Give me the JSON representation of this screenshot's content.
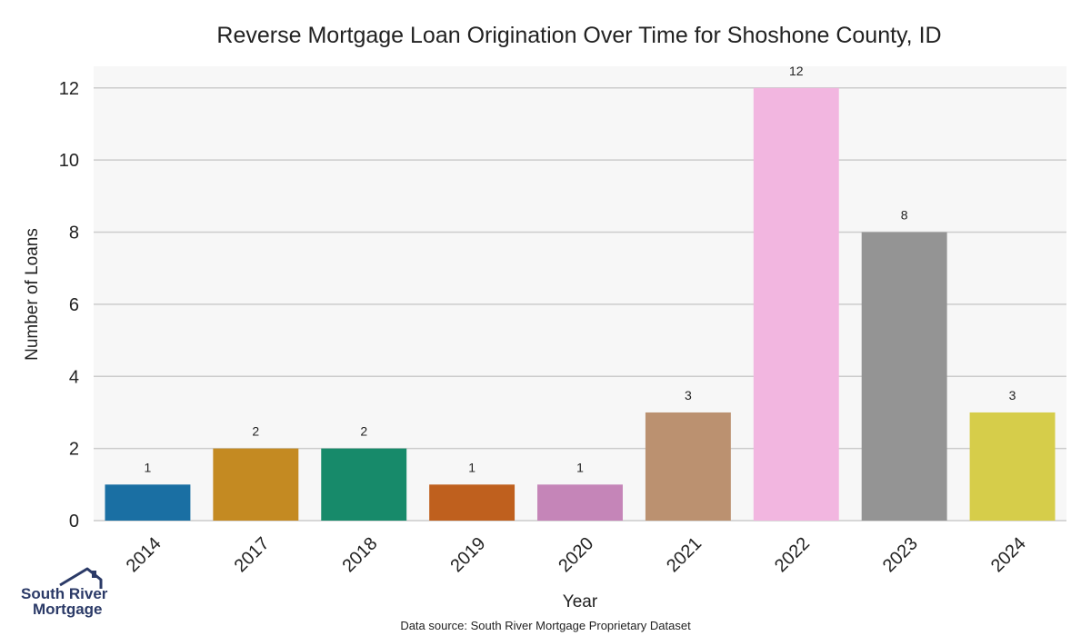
{
  "chart_data": {
    "type": "bar",
    "title": "Reverse Mortgage Loan Origination Over Time for Shoshone County, ID",
    "xlabel": "Year",
    "ylabel": "Number of Loans",
    "categories": [
      "2014",
      "2017",
      "2018",
      "2019",
      "2020",
      "2021",
      "2022",
      "2023",
      "2024"
    ],
    "values": [
      1,
      2,
      2,
      1,
      1,
      3,
      12,
      8,
      3
    ],
    "colors": [
      "#1a6fa3",
      "#c48a22",
      "#178a6a",
      "#bf601e",
      "#c585b8",
      "#bb9170",
      "#f2b6e0",
      "#949494",
      "#d6cd4a"
    ],
    "ylim": [
      0,
      12.6
    ],
    "yticks": [
      0,
      2,
      4,
      6,
      8,
      10,
      12
    ],
    "grid": true,
    "plot_background": "#f7f7f7",
    "grid_color": "#cccccc"
  },
  "footer": {
    "source": "Data source: South River Mortgage Proprietary Dataset"
  },
  "logo": {
    "line1": "South River",
    "line2": "Mortgage",
    "icon": "house-roof-icon",
    "color": "#2b3a67"
  }
}
